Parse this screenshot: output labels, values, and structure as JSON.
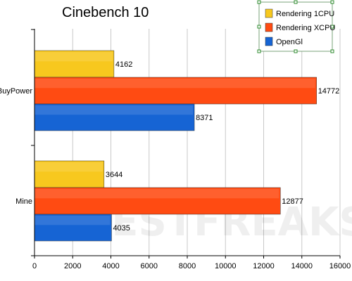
{
  "chart_data": {
    "type": "bar",
    "orientation": "horizontal",
    "title": "Cinebench 10",
    "categories": [
      "iBuyPower",
      "Mine"
    ],
    "series": [
      {
        "name": "Rendering 1CPU",
        "color": "#f7c81e",
        "values": [
          4162,
          3644
        ]
      },
      {
        "name": "Rendering XCPU",
        "color": "#ff4b12",
        "values": [
          14772,
          12877
        ]
      },
      {
        "name": "OpenGl",
        "color": "#1664d4",
        "values": [
          8371,
          4035
        ]
      }
    ],
    "xlim": [
      0,
      16000
    ],
    "xticks": [
      0,
      2000,
      4000,
      6000,
      8000,
      10000,
      12000,
      14000,
      16000
    ],
    "grid": "vertical",
    "legend": "top-right"
  },
  "watermark": "TESTFREAKS"
}
